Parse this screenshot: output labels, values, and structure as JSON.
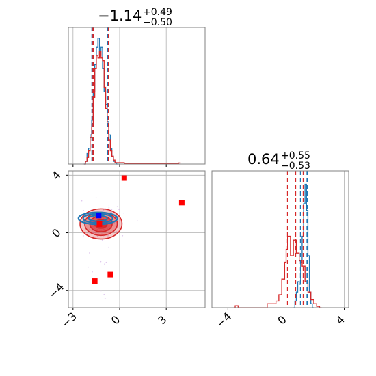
{
  "chart_data": {
    "type": "corner",
    "colors": {
      "series_a": "#1f77b4",
      "series_b": "#d62728",
      "grid": "#b0b0b0",
      "frame": "#808080",
      "markers": "#ff0000",
      "blue_marker": "#0000ff",
      "faint_points": "#d7b9ea"
    },
    "parameters": [
      {
        "title": "−1.14",
        "err_up": "+0.49",
        "err_down": "−0.50",
        "range": [
          -3.3,
          5.5
        ],
        "ticks": [
          {
            "value": -3,
            "label": "−3"
          },
          {
            "value": 0,
            "label": "0"
          },
          {
            "value": 3,
            "label": "3"
          }
        ],
        "quantiles_a": [
          -1.73,
          -0.72
        ],
        "quantiles_b": [
          -1.75,
          -0.75
        ],
        "median": -1.14,
        "hist_a": [
          [
            -2.3,
            0
          ],
          [
            -2.2,
            0.02
          ],
          [
            -2.1,
            0.08
          ],
          [
            -2.0,
            0.12
          ],
          [
            -1.9,
            0.22
          ],
          [
            -1.8,
            0.33
          ],
          [
            -1.7,
            0.55
          ],
          [
            -1.6,
            0.75
          ],
          [
            -1.5,
            0.88
          ],
          [
            -1.4,
            0.95
          ],
          [
            -1.3,
            0.82
          ],
          [
            -1.2,
            0.88
          ],
          [
            -1.1,
            0.72
          ],
          [
            -1.0,
            0.55
          ],
          [
            -0.9,
            0.45
          ],
          [
            -0.8,
            0.32
          ],
          [
            -0.7,
            0.22
          ],
          [
            -0.6,
            0.12
          ],
          [
            -0.5,
            0.06
          ],
          [
            -0.4,
            0.02
          ],
          [
            -0.3,
            0.01
          ],
          [
            -0.2,
            0.0
          ]
        ],
        "hist_b": [
          [
            -2.3,
            0
          ],
          [
            -2.2,
            0.02
          ],
          [
            -2.1,
            0.05
          ],
          [
            -2.0,
            0.1
          ],
          [
            -1.9,
            0.2
          ],
          [
            -1.8,
            0.3
          ],
          [
            -1.7,
            0.5
          ],
          [
            -1.6,
            0.72
          ],
          [
            -1.5,
            0.82
          ],
          [
            -1.4,
            0.8
          ],
          [
            -1.3,
            0.85
          ],
          [
            -1.2,
            0.8
          ],
          [
            -1.1,
            0.78
          ],
          [
            -1.0,
            0.58
          ],
          [
            -0.9,
            0.42
          ],
          [
            -0.8,
            0.3
          ],
          [
            -0.7,
            0.18
          ],
          [
            -0.6,
            0.1
          ],
          [
            -0.5,
            0.06
          ],
          [
            -0.4,
            0.03
          ],
          [
            -0.3,
            0.01
          ],
          [
            -0.2,
            0.01
          ],
          [
            0.3,
            0.005
          ],
          [
            3.8,
            0.008
          ]
        ]
      },
      {
        "title": "0.64",
        "err_up": "+0.55",
        "err_down": "−0.53",
        "range": [
          -5.1,
          4.3
        ],
        "ticks": [
          {
            "value": -4,
            "label": "−4"
          },
          {
            "value": 0,
            "label": "0"
          },
          {
            "value": 4,
            "label": "4"
          }
        ],
        "quantiles_a": [
          1.0,
          1.45
        ],
        "quantiles_b": [
          0.11,
          1.19
        ],
        "median_a": 1.2,
        "median_b": 0.64,
        "hist_a": [
          [
            0.5,
            0
          ],
          [
            0.6,
            0.05
          ],
          [
            0.7,
            0.12
          ],
          [
            0.8,
            0.2
          ],
          [
            0.9,
            0.18
          ],
          [
            1.0,
            0.35
          ],
          [
            1.1,
            0.55
          ],
          [
            1.2,
            0.8
          ],
          [
            1.3,
            0.95
          ],
          [
            1.4,
            0.75
          ],
          [
            1.5,
            0.4
          ],
          [
            1.6,
            0.12
          ],
          [
            1.7,
            0.03
          ],
          [
            1.8,
            0
          ]
        ],
        "hist_b": [
          [
            -3.6,
            0
          ],
          [
            -3.5,
            0.015
          ],
          [
            -3.3,
            0
          ],
          [
            -1.4,
            0
          ],
          [
            -1.3,
            0.03
          ],
          [
            -0.7,
            0.05
          ],
          [
            -0.5,
            0.1
          ],
          [
            -0.3,
            0.22
          ],
          [
            -0.1,
            0.35
          ],
          [
            0.0,
            0.45
          ],
          [
            0.1,
            0.55
          ],
          [
            0.3,
            0.4
          ],
          [
            0.5,
            0.52
          ],
          [
            0.7,
            0.42
          ],
          [
            0.9,
            0.36
          ],
          [
            1.1,
            0.32
          ],
          [
            1.3,
            0.2
          ],
          [
            1.5,
            0.12
          ],
          [
            1.7,
            0.06
          ],
          [
            1.9,
            0.03
          ],
          [
            2.1,
            0.01
          ],
          [
            2.3,
            0
          ]
        ]
      }
    ],
    "joint": {
      "x_ticks": [
        {
          "value": -3,
          "label": "−3"
        },
        {
          "value": 0,
          "label": "0"
        },
        {
          "value": 3,
          "label": "3"
        }
      ],
      "y_ticks": [
        {
          "value": 4,
          "label": "4"
        },
        {
          "value": 0,
          "label": "0"
        },
        {
          "value": -4,
          "label": "−4"
        }
      ],
      "y_range": [
        -5.2,
        4.3
      ],
      "contour_center_a": [
        -1.4,
        1.0
      ],
      "contour_center_b": [
        -1.2,
        0.62
      ],
      "red_markers": [
        [
          0.3,
          3.8
        ],
        [
          4.0,
          2.1
        ],
        [
          -1.6,
          -3.35
        ],
        [
          -0.6,
          -2.9
        ],
        [
          -1.3,
          0.6
        ]
      ],
      "blue_marker": [
        -1.35,
        1.2
      ]
    }
  }
}
